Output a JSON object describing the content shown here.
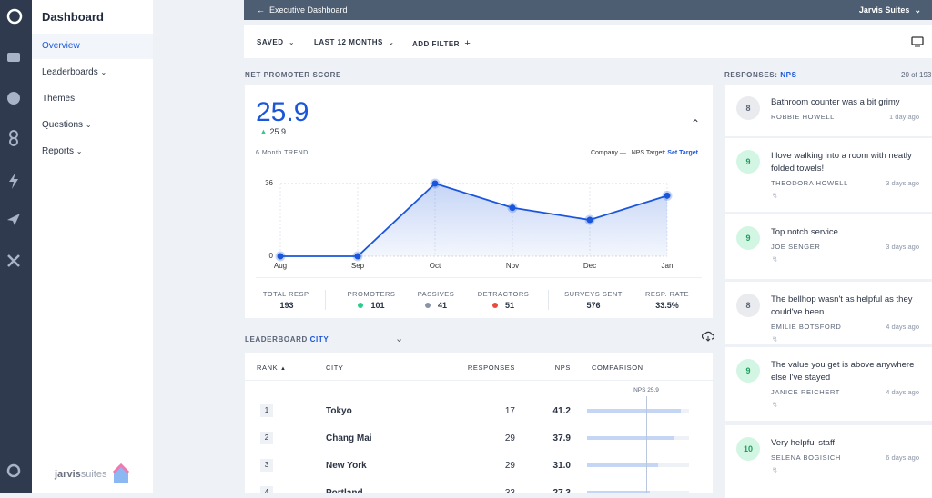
{
  "sidebar": {
    "title": "Dashboard",
    "items": [
      "Overview",
      "Leaderboards",
      "Themes",
      "Questions",
      "Reports"
    ],
    "brand": "jarvis",
    "brand2": "suites"
  },
  "header": {
    "back": "Executive Dashboard",
    "property": "Jarvis Suites"
  },
  "filters": [
    "SAVED",
    "LAST 12 MONTHS",
    "ADD FILTER"
  ],
  "nps": {
    "label": "NET PROMOTER SCORE",
    "score": 25.9,
    "change": 25.9,
    "trend_label": "6 Month TREND",
    "legend_company": "Company",
    "legend_target": "NPS Target:",
    "set_target": "Set Target",
    "stats": [
      {
        "label": "TOTAL RESP.",
        "value": 193
      },
      {
        "label": "PROMOTERS",
        "value": 101,
        "color": "#2ecc8a"
      },
      {
        "label": "PASSIVES",
        "value": 41,
        "color": "#8a94a6"
      },
      {
        "label": "DETRACTORS",
        "value": 51,
        "color": "#e74c3c"
      },
      {
        "label": "SURVEYS SENT",
        "value": 576
      },
      {
        "label": "RESP. RATE",
        "value": "33.5%"
      }
    ]
  },
  "chart_data": {
    "type": "line",
    "categories": [
      "Aug",
      "Sep",
      "Oct",
      "Nov",
      "Dec",
      "Jan"
    ],
    "values": [
      0,
      0,
      36,
      24,
      18,
      30
    ],
    "ylim": [
      0,
      36
    ],
    "yticks": [
      0,
      36
    ],
    "color": "#1a56db",
    "grid": true
  },
  "leaderboard": {
    "label": "LEADERBOARD",
    "dimension": "CITY",
    "columns": [
      "RANK",
      "CITY",
      "RESPONSES",
      "NPS",
      "COMPARISON"
    ],
    "reference": 25.9,
    "reference_label": "NPS 25.9",
    "rows": [
      [
        "1",
        "Tokyo",
        "17",
        "41.2"
      ],
      [
        "2",
        "Chang Mai",
        "29",
        "37.9"
      ],
      [
        "3",
        "New York",
        "29",
        "31.0"
      ],
      [
        "4",
        "Portland",
        "33",
        "27.3"
      ]
    ]
  },
  "responses": {
    "label": "RESPONSES:",
    "type": "NPS",
    "count": "20 of 193",
    "items": [
      {
        "score": 8,
        "text": "Bathroom counter was a bit grimy",
        "name": "ROBBIE HOWELL",
        "time": "1 day ago"
      },
      {
        "score": 9,
        "text": "I love walking into a room with neatly folded towels!",
        "name": "THEODORA HOWELL",
        "time": "3 days ago"
      },
      {
        "score": 9,
        "text": "Top notch service",
        "name": "JOE SENGER",
        "time": "3 days ago"
      },
      {
        "score": 8,
        "text": "The bellhop wasn't as helpful as they could've been",
        "name": "EMILIE BOTSFORD",
        "time": "4 days ago"
      },
      {
        "score": 9,
        "text": "The value you get is above anywhere else I've stayed",
        "name": "JANICE REICHERT",
        "time": "4 days ago"
      },
      {
        "score": 10,
        "text": "Very helpful staff!",
        "name": "SELENA BOGISICH",
        "time": "6 days ago"
      }
    ]
  }
}
